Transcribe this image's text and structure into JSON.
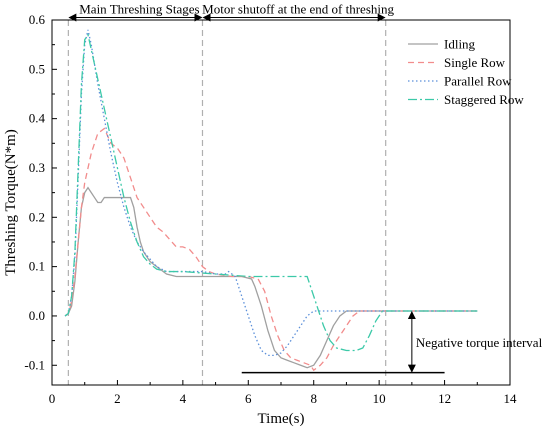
{
  "chart_data": {
    "type": "line",
    "xlabel": "Time(s)",
    "ylabel": "Threshing Torque(N*m)",
    "xlim": [
      0,
      14
    ],
    "ylim": [
      -0.14,
      0.6
    ],
    "xticks": [
      0,
      2,
      4,
      6,
      8,
      10,
      12,
      14
    ],
    "yticks": [
      -0.1,
      0.0,
      0.1,
      0.2,
      0.3,
      0.4,
      0.5,
      0.6
    ],
    "xtick_labels": [
      "0",
      "2",
      "4",
      "6",
      "8",
      "10",
      "12",
      "14"
    ],
    "ytick_labels": [
      "-0.1",
      "0.0",
      "0.1",
      "0.2",
      "0.3",
      "0.4",
      "0.5",
      "0.6"
    ],
    "grid": false,
    "legend_position": "top-right",
    "series": [
      {
        "name": "Idling",
        "color": "#a0a0a0",
        "dash": "solid",
        "points": [
          [
            0.4,
            0
          ],
          [
            0.5,
            0.005
          ],
          [
            0.6,
            0.02
          ],
          [
            0.7,
            0.07
          ],
          [
            0.8,
            0.15
          ],
          [
            0.9,
            0.22
          ],
          [
            1.0,
            0.25
          ],
          [
            1.1,
            0.26
          ],
          [
            1.2,
            0.25
          ],
          [
            1.3,
            0.24
          ],
          [
            1.4,
            0.23
          ],
          [
            1.5,
            0.23
          ],
          [
            1.6,
            0.24
          ],
          [
            2.4,
            0.24
          ],
          [
            2.5,
            0.22
          ],
          [
            2.6,
            0.18
          ],
          [
            2.7,
            0.15
          ],
          [
            2.8,
            0.13
          ],
          [
            3.0,
            0.11
          ],
          [
            3.2,
            0.1
          ],
          [
            3.5,
            0.085
          ],
          [
            3.8,
            0.08
          ],
          [
            4.5,
            0.08
          ],
          [
            5.0,
            0.08
          ],
          [
            5.8,
            0.08
          ],
          [
            6.1,
            0.075
          ],
          [
            6.2,
            0.06
          ],
          [
            6.4,
            0.02
          ],
          [
            6.6,
            -0.03
          ],
          [
            6.8,
            -0.07
          ],
          [
            7.0,
            -0.085
          ],
          [
            7.2,
            -0.09
          ],
          [
            7.4,
            -0.095
          ],
          [
            7.6,
            -0.1
          ],
          [
            7.8,
            -0.105
          ],
          [
            8.0,
            -0.1
          ],
          [
            8.2,
            -0.08
          ],
          [
            8.4,
            -0.05
          ],
          [
            8.6,
            -0.02
          ],
          [
            8.8,
            0.0
          ],
          [
            9.0,
            0.01
          ],
          [
            13.0,
            0.01
          ]
        ]
      },
      {
        "name": "Single Row",
        "color": "#f28c8c",
        "dash": "6,4",
        "points": [
          [
            0.4,
            0
          ],
          [
            0.5,
            0.005
          ],
          [
            0.6,
            0.03
          ],
          [
            0.7,
            0.08
          ],
          [
            0.8,
            0.15
          ],
          [
            0.9,
            0.22
          ],
          [
            1.0,
            0.27
          ],
          [
            1.2,
            0.33
          ],
          [
            1.4,
            0.37
          ],
          [
            1.6,
            0.38
          ],
          [
            1.8,
            0.35
          ],
          [
            2.0,
            0.34
          ],
          [
            2.2,
            0.32
          ],
          [
            2.4,
            0.28
          ],
          [
            2.6,
            0.24
          ],
          [
            2.8,
            0.22
          ],
          [
            3.0,
            0.2
          ],
          [
            3.2,
            0.18
          ],
          [
            3.4,
            0.17
          ],
          [
            3.6,
            0.155
          ],
          [
            3.8,
            0.14
          ],
          [
            4.0,
            0.14
          ],
          [
            4.2,
            0.135
          ],
          [
            4.4,
            0.12
          ],
          [
            4.6,
            0.1
          ],
          [
            4.8,
            0.09
          ],
          [
            5.0,
            0.085
          ],
          [
            5.5,
            0.08
          ],
          [
            6.0,
            0.08
          ],
          [
            6.3,
            0.075
          ],
          [
            6.5,
            0.05
          ],
          [
            6.7,
            0.0
          ],
          [
            6.9,
            -0.04
          ],
          [
            7.1,
            -0.07
          ],
          [
            7.3,
            -0.085
          ],
          [
            7.5,
            -0.09
          ],
          [
            7.7,
            -0.095
          ],
          [
            7.9,
            -0.1
          ],
          [
            8.0,
            -0.11
          ],
          [
            8.2,
            -0.1
          ],
          [
            8.4,
            -0.085
          ],
          [
            8.6,
            -0.06
          ],
          [
            8.8,
            -0.04
          ],
          [
            9.0,
            -0.02
          ],
          [
            9.2,
            0.0
          ],
          [
            9.4,
            0.01
          ],
          [
            13.0,
            0.01
          ]
        ]
      },
      {
        "name": "Parallel Row",
        "color": "#5b8fd9",
        "dash": "1.5,2.5",
        "points": [
          [
            0.4,
            0
          ],
          [
            0.5,
            0.005
          ],
          [
            0.6,
            0.04
          ],
          [
            0.7,
            0.12
          ],
          [
            0.8,
            0.28
          ],
          [
            0.9,
            0.45
          ],
          [
            1.0,
            0.55
          ],
          [
            1.1,
            0.58
          ],
          [
            1.2,
            0.55
          ],
          [
            1.4,
            0.47
          ],
          [
            1.6,
            0.4
          ],
          [
            1.8,
            0.33
          ],
          [
            2.0,
            0.27
          ],
          [
            2.2,
            0.22
          ],
          [
            2.4,
            0.18
          ],
          [
            2.6,
            0.15
          ],
          [
            2.8,
            0.13
          ],
          [
            3.0,
            0.115
          ],
          [
            3.2,
            0.1
          ],
          [
            3.5,
            0.09
          ],
          [
            4.0,
            0.09
          ],
          [
            4.6,
            0.09
          ],
          [
            5.0,
            0.085
          ],
          [
            5.3,
            0.085
          ],
          [
            5.4,
            0.09
          ],
          [
            5.6,
            0.08
          ],
          [
            5.8,
            0.04
          ],
          [
            6.0,
            0.0
          ],
          [
            6.2,
            -0.04
          ],
          [
            6.4,
            -0.07
          ],
          [
            6.6,
            -0.08
          ],
          [
            6.8,
            -0.08
          ],
          [
            7.0,
            -0.075
          ],
          [
            7.2,
            -0.06
          ],
          [
            7.4,
            -0.04
          ],
          [
            7.6,
            -0.02
          ],
          [
            7.8,
            0.0
          ],
          [
            8.0,
            0.01
          ],
          [
            13.0,
            0.01
          ]
        ]
      },
      {
        "name": "Staggered Row",
        "color": "#3cc9a8",
        "dash": "9,3,2,3",
        "points": [
          [
            0.4,
            0
          ],
          [
            0.5,
            0.005
          ],
          [
            0.6,
            0.04
          ],
          [
            0.7,
            0.13
          ],
          [
            0.8,
            0.3
          ],
          [
            0.9,
            0.47
          ],
          [
            1.0,
            0.56
          ],
          [
            1.1,
            0.57
          ],
          [
            1.2,
            0.54
          ],
          [
            1.4,
            0.48
          ],
          [
            1.6,
            0.42
          ],
          [
            1.8,
            0.36
          ],
          [
            2.0,
            0.3
          ],
          [
            2.2,
            0.24
          ],
          [
            2.4,
            0.19
          ],
          [
            2.6,
            0.15
          ],
          [
            2.8,
            0.12
          ],
          [
            3.0,
            0.105
          ],
          [
            3.2,
            0.095
          ],
          [
            3.5,
            0.09
          ],
          [
            4.0,
            0.09
          ],
          [
            5.0,
            0.085
          ],
          [
            6.0,
            0.08
          ],
          [
            7.0,
            0.08
          ],
          [
            7.8,
            0.08
          ],
          [
            7.9,
            0.06
          ],
          [
            8.1,
            0.02
          ],
          [
            8.3,
            -0.02
          ],
          [
            8.5,
            -0.05
          ],
          [
            8.7,
            -0.065
          ],
          [
            9.0,
            -0.07
          ],
          [
            9.3,
            -0.07
          ],
          [
            9.5,
            -0.065
          ],
          [
            9.7,
            -0.04
          ],
          [
            9.9,
            -0.01
          ],
          [
            10.1,
            0.01
          ],
          [
            13.0,
            0.01
          ]
        ]
      }
    ],
    "reference_lines": [
      {
        "axis": "x",
        "value": 0.5,
        "color": "#b0b0b0"
      },
      {
        "axis": "x",
        "value": 4.6,
        "color": "#b0b0b0"
      },
      {
        "axis": "x",
        "value": 10.2,
        "color": "#b0b0b0"
      }
    ],
    "annotations": {
      "stage1_label": "Main Threshing Stages",
      "stage2_label": "Motor shutoff at the end of threshing",
      "stage1_range": [
        0.5,
        4.6
      ],
      "stage2_range": [
        4.6,
        10.2
      ],
      "stage_y": 0.605,
      "negative_label": "Negative torque interval",
      "negative_x": 11.0,
      "negative_range": [
        -0.115,
        0.01
      ],
      "baseline": {
        "x_start": 5.8,
        "x_end": 12.0,
        "y": -0.115
      }
    }
  }
}
